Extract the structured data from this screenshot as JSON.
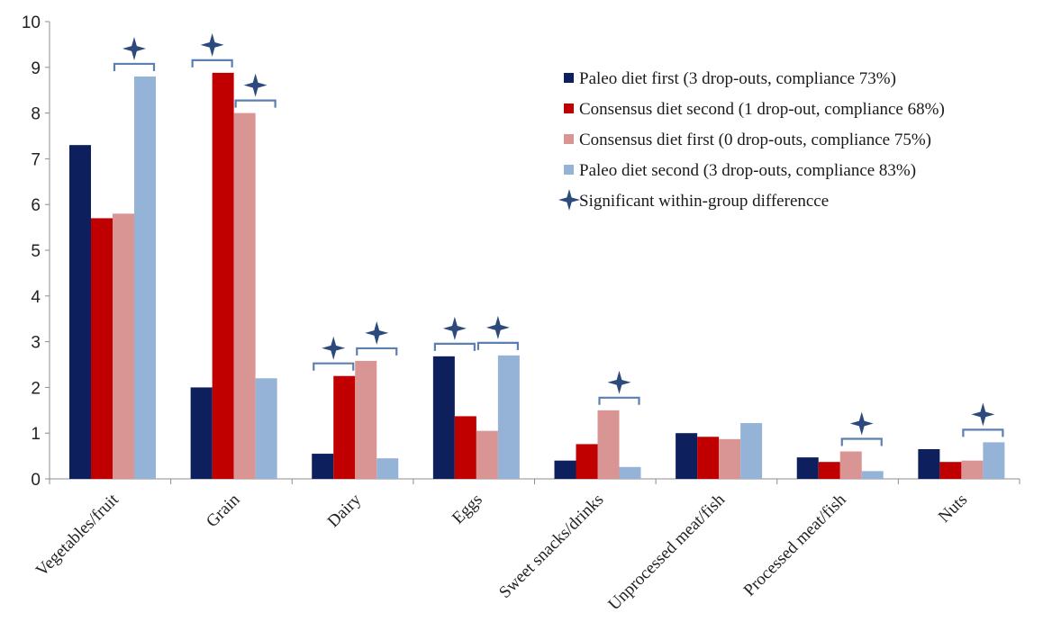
{
  "chart_data": {
    "type": "bar",
    "title": "",
    "xlabel": "",
    "ylabel": "",
    "ylim": [
      0,
      10
    ],
    "yticks": [
      "0",
      "1",
      "2",
      "3",
      "4",
      "5",
      "6",
      "7",
      "8",
      "9",
      "10"
    ],
    "grid": false,
    "legend_position": "top-right",
    "categories": [
      "Vegetables/fruit",
      "Grain",
      "Dairy",
      "Eggs",
      "Sweet snacks/drinks",
      "Unprocessed meat/fish",
      "Processed meat/fish",
      "Nuts"
    ],
    "series": [
      {
        "name": "Paleo diet first (3 drop-outs, compliance 73%)",
        "color": "#0d1f5c",
        "values": [
          7.3,
          2.0,
          0.55,
          2.68,
          0.4,
          1.0,
          0.47,
          0.65
        ]
      },
      {
        "name": "Consensus diet  second (1 drop-out, compliance 68%)",
        "color": "#c00000",
        "values": [
          5.7,
          8.88,
          2.25,
          1.37,
          0.76,
          0.92,
          0.37,
          0.37
        ]
      },
      {
        "name": "Consensus diet  first (0 drop-outs, compliance 75%)",
        "color": "#d99594",
        "values": [
          5.8,
          8.0,
          2.58,
          1.05,
          1.5,
          0.87,
          0.6,
          0.4
        ]
      },
      {
        "name": "Paleo diet second (3 drop-outs, compliance 83%)",
        "color": "#95b3d7",
        "values": [
          8.8,
          2.2,
          0.45,
          2.7,
          0.26,
          1.22,
          0.17,
          0.8
        ]
      }
    ],
    "significance_legend": {
      "label": "Significant within-group differencce",
      "color": "#2c4a7c",
      "icon": "four-point-star-icon"
    },
    "significance_markers": [
      {
        "category": "Vegetables/fruit",
        "series_pair": [
          2,
          3
        ]
      },
      {
        "category": "Grain",
        "series_pair": [
          0,
          1
        ]
      },
      {
        "category": "Grain",
        "series_pair": [
          2,
          3
        ]
      },
      {
        "category": "Dairy",
        "series_pair": [
          0,
          1
        ]
      },
      {
        "category": "Dairy",
        "series_pair": [
          2,
          3
        ]
      },
      {
        "category": "Eggs",
        "series_pair": [
          0,
          1
        ]
      },
      {
        "category": "Eggs",
        "series_pair": [
          2,
          3
        ]
      },
      {
        "category": "Sweet snacks/drinks",
        "series_pair": [
          2,
          3
        ]
      },
      {
        "category": "Processed meat/fish",
        "series_pair": [
          2,
          3
        ]
      },
      {
        "category": "Nuts",
        "series_pair": [
          2,
          3
        ]
      }
    ]
  }
}
